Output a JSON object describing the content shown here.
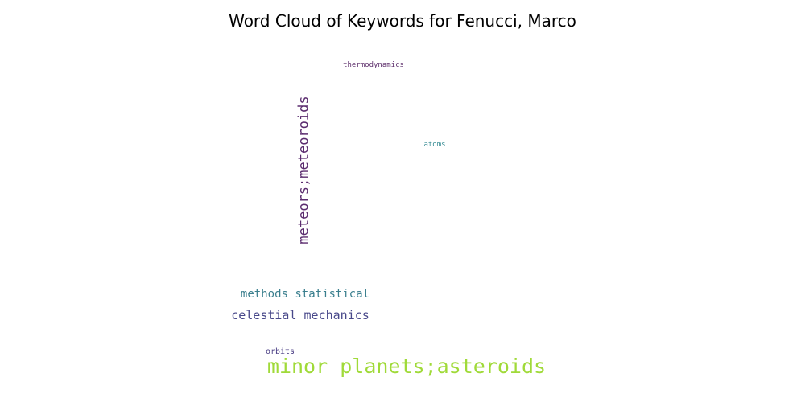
{
  "chart_data": {
    "type": "wordcloud",
    "title": "Word Cloud of Keywords for Fenucci, Marco",
    "words": [
      {
        "text": "minor planets;asteroids",
        "weight": 1.0,
        "color": "#a0da39",
        "orientation": "horizontal"
      },
      {
        "text": "meteors;meteoroids",
        "weight": 0.72,
        "color": "#5b2c6f",
        "orientation": "vertical"
      },
      {
        "text": "celestial mechanics",
        "weight": 0.6,
        "color": "#48488a",
        "orientation": "horizontal"
      },
      {
        "text": "methods statistical",
        "weight": 0.6,
        "color": "#3b7f8e",
        "orientation": "horizontal"
      },
      {
        "text": "orbits",
        "weight": 0.3,
        "color": "#4b3f85",
        "orientation": "horizontal"
      },
      {
        "text": "thermodynamics",
        "weight": 0.25,
        "color": "#5e2f6c",
        "orientation": "horizontal"
      },
      {
        "text": "atoms",
        "weight": 0.25,
        "color": "#3a8e96",
        "orientation": "horizontal"
      }
    ]
  }
}
